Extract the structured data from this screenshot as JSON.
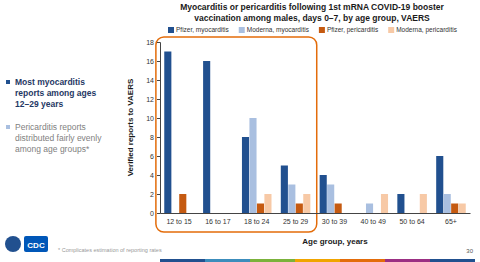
{
  "chart_data": {
    "type": "bar",
    "title": [
      "Myocarditis or pericarditis following 1st mRNA COVID-19 booster",
      "vaccination among males, days 0–7, by age group, VAERS"
    ],
    "x_label": "Age group, years",
    "y_label": "Verified reports to VAERS",
    "categories": [
      "12 to 15",
      "16 to 17",
      "18 to 24",
      "25 to 29",
      "30 to 39",
      "40 to 49",
      "50 to 64",
      "65+"
    ],
    "series": [
      {
        "name": "Pfizer, myocarditis",
        "color": "#21508f",
        "values": [
          17,
          16,
          8,
          5,
          4,
          0,
          2,
          6
        ]
      },
      {
        "name": "Moderna, myocarditis",
        "color": "#a9bfe0",
        "values": [
          0,
          0,
          10,
          3,
          3,
          1,
          0,
          2
        ]
      },
      {
        "name": "Pfizer, pericarditis",
        "color": "#c55a11",
        "values": [
          2,
          0,
          1,
          1,
          1,
          0,
          0,
          1
        ]
      },
      {
        "name": "Moderna, pericarditis",
        "color": "#f7c9a6",
        "values": [
          0,
          0,
          2,
          2,
          0,
          2,
          2,
          1
        ]
      }
    ],
    "ylim": [
      0,
      18
    ],
    "yticks": [
      0,
      2,
      4,
      6,
      8,
      10,
      12,
      14,
      16,
      18
    ],
    "grid": false,
    "legend": "top",
    "annotations": [
      "Most myocarditis reports among ages 12–29 years",
      "Pericarditis reports distributed fairly evenly among age groups*",
      "* Complicates estimation of reporting rates",
      "30",
      "CDC"
    ]
  }
}
